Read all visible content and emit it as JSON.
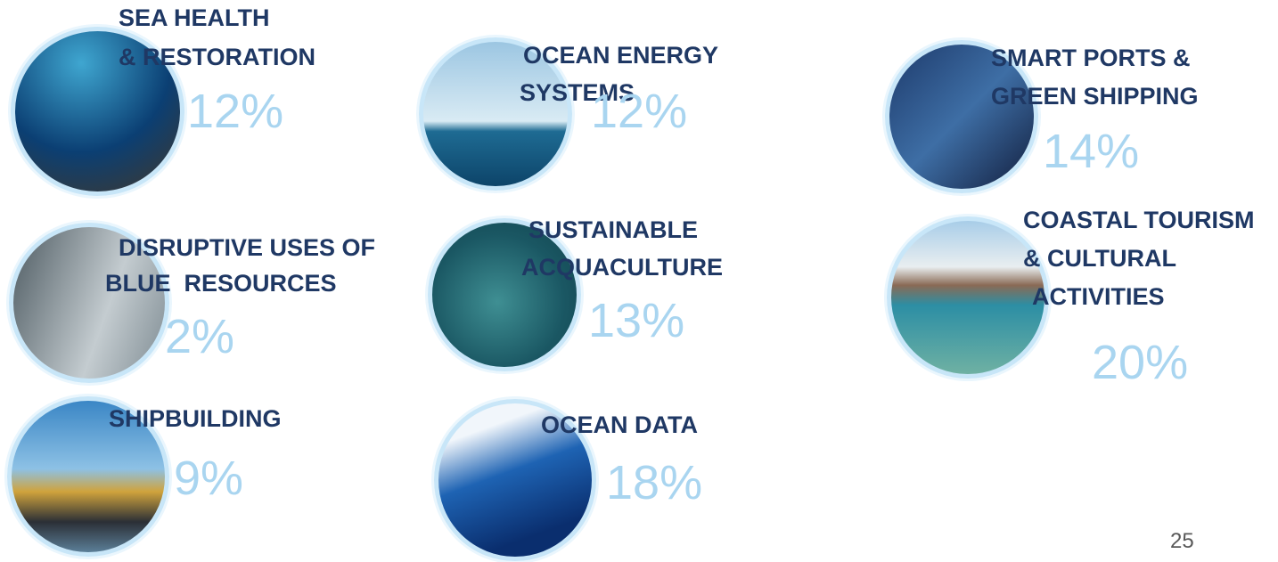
{
  "items": [
    {
      "title": [
        "SEA HEALTH",
        "& RESTORATION"
      ],
      "share": "12%"
    },
    {
      "title": [
        "OCEAN ENERGY",
        "SYSTEMS"
      ],
      "share": "12%"
    },
    {
      "title": [
        "SMART PORTS &",
        "GREEN SHIPPING"
      ],
      "share": "14%"
    },
    {
      "title": [
        "DISRUPTIVE USES OF",
        "BLUE  RESOURCES"
      ],
      "share": "2%"
    },
    {
      "title": [
        "SUSTAINABLE",
        "ACQUACULTURE"
      ],
      "share": "13%"
    },
    {
      "title": [
        "COASTAL TOURISM",
        "& CULTURAL",
        "ACTIVITIES"
      ],
      "share": "20%"
    },
    {
      "title": [
        "SHIPBUILDING"
      ],
      "share": "9%"
    },
    {
      "title": [
        "OCEAN DATA"
      ],
      "share": "18%"
    }
  ],
  "page_number": "25"
}
